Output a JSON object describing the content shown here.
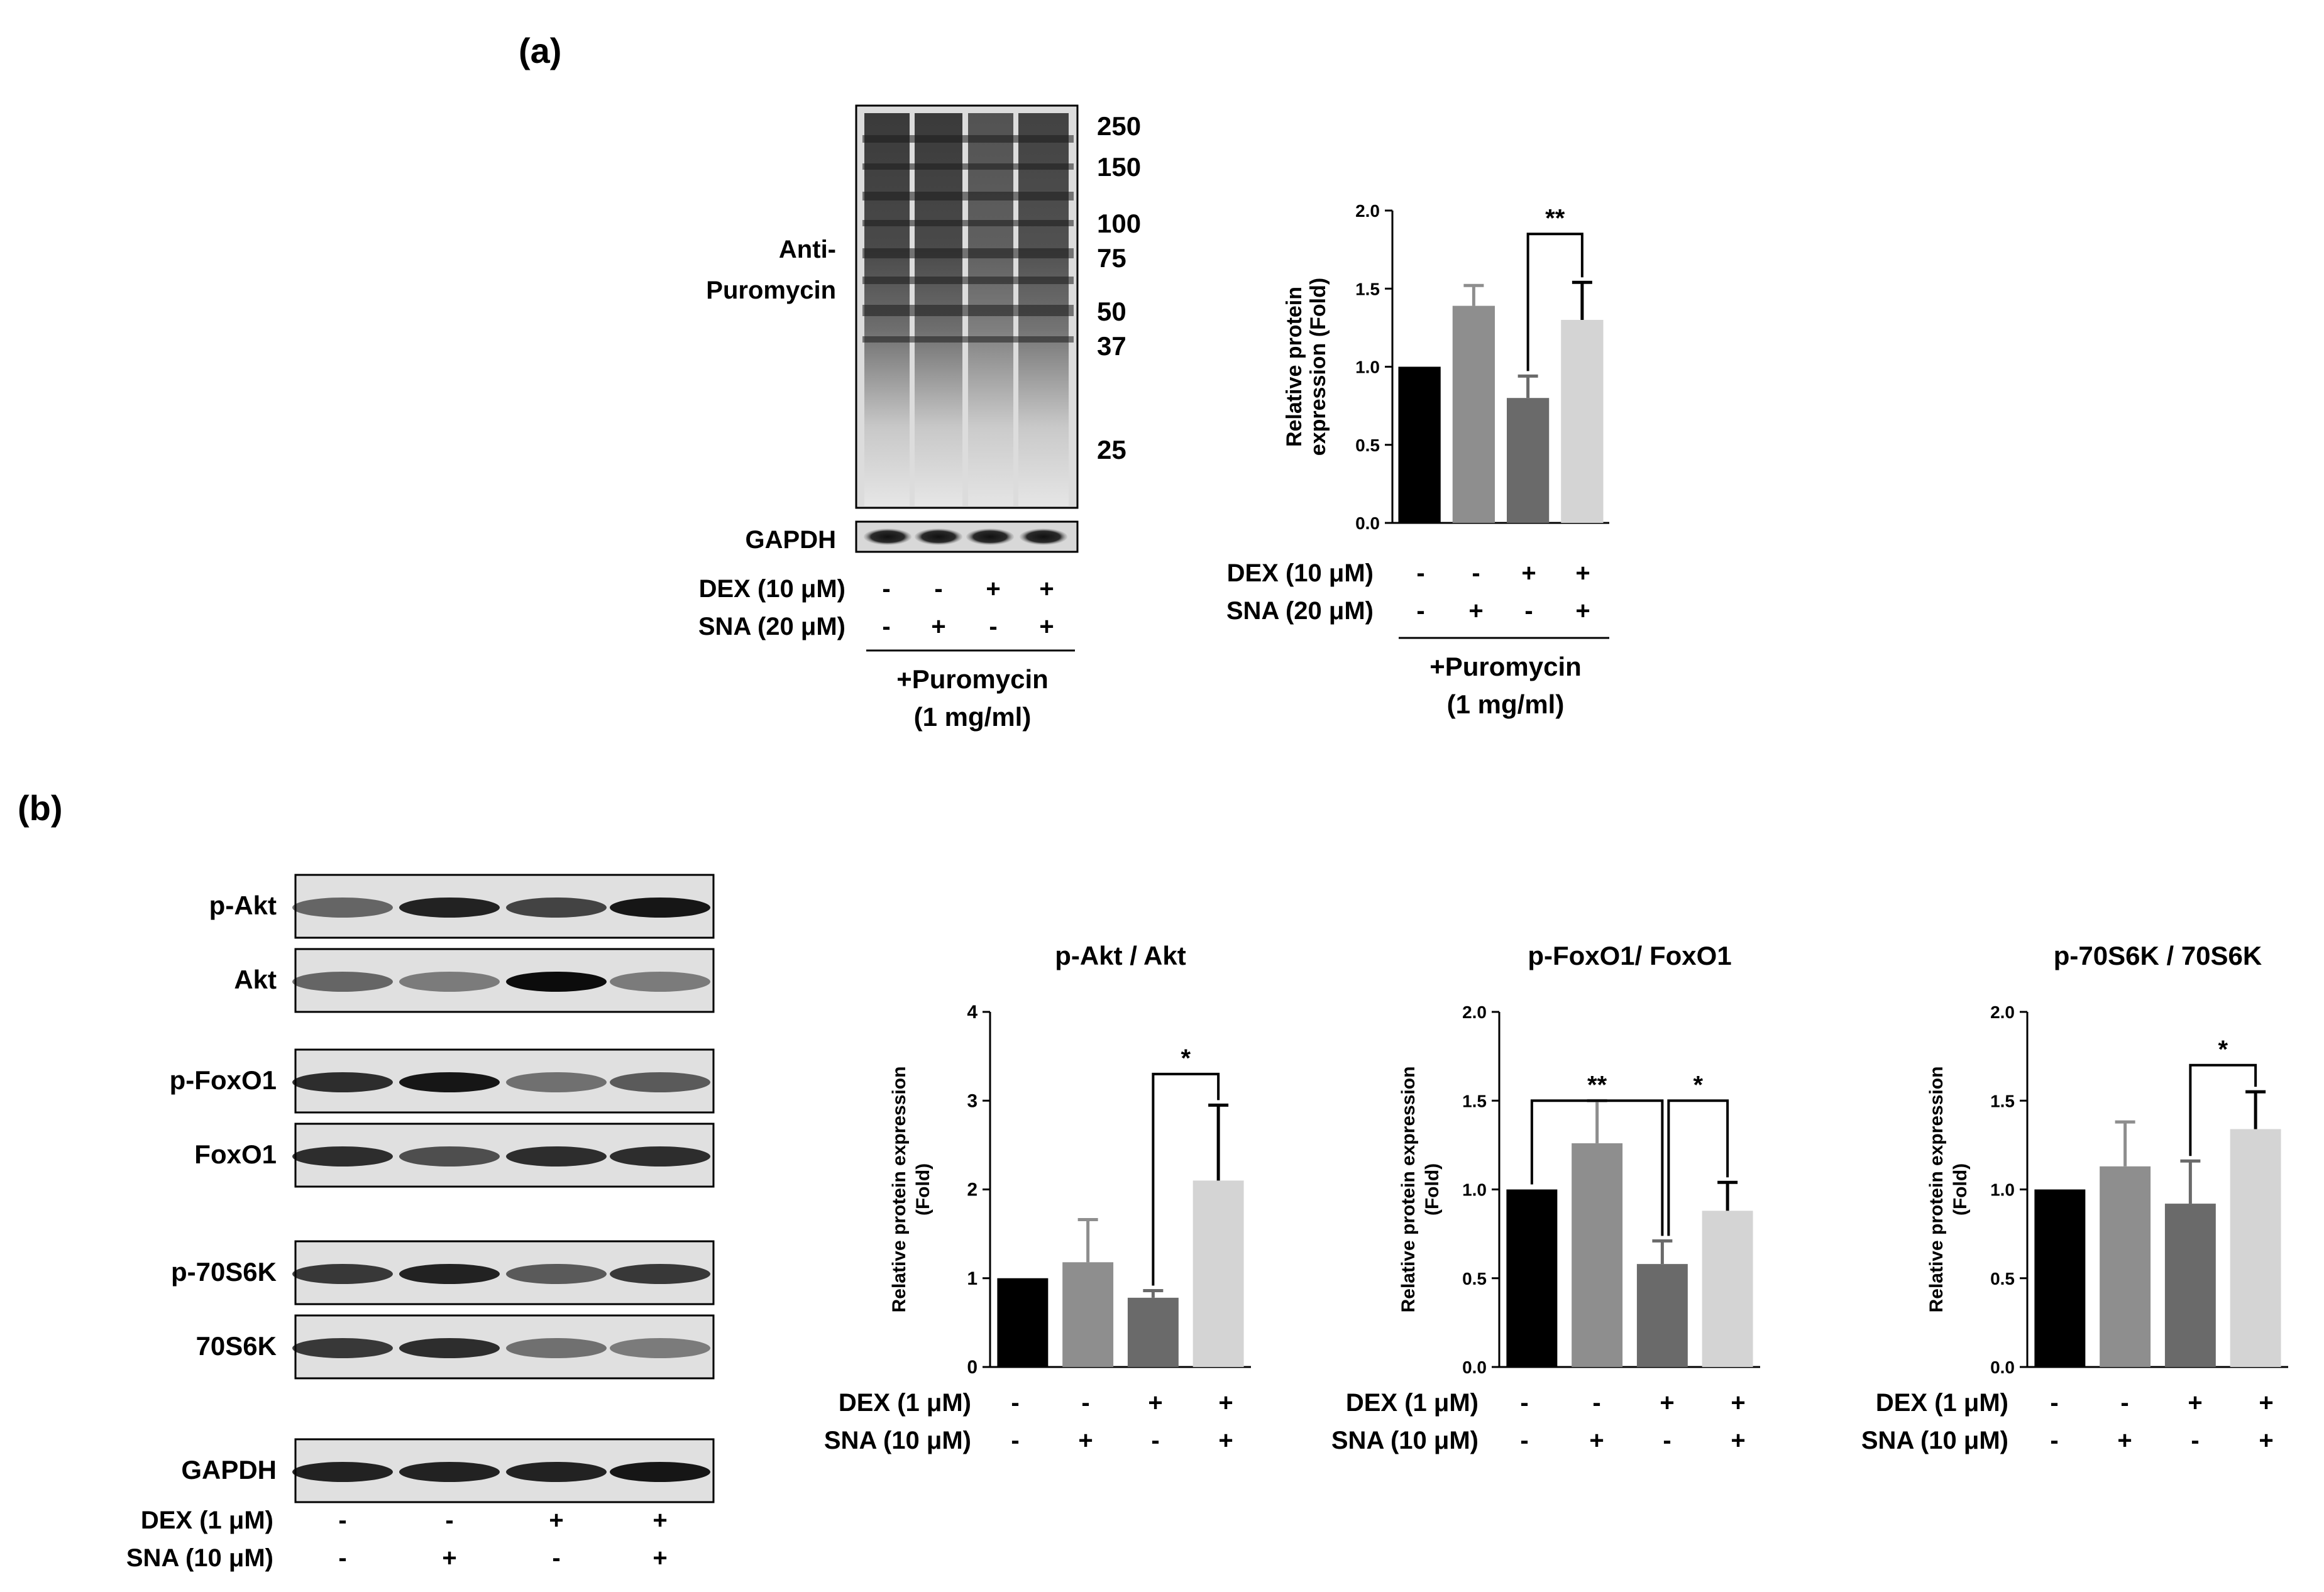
{
  "panel_a": {
    "label": "(a)",
    "blot": {
      "antibody_label": [
        "Anti-",
        "Puromycin"
      ],
      "markers": [
        "250",
        "150",
        "100",
        "75",
        "50",
        "37",
        "25"
      ],
      "loading_label": "GAPDH",
      "conditions": [
        {
          "label": "DEX (10 μM)",
          "signs": [
            "-",
            "-",
            "+",
            "+"
          ]
        },
        {
          "label": "SNA (20 μM)",
          "signs": [
            "-",
            "+",
            "-",
            "+"
          ]
        }
      ],
      "bracket_label": [
        "+Puromycin",
        "(1 mg/ml)"
      ]
    },
    "chart_conditions": [
      {
        "label": "DEX (10 μM)",
        "signs": [
          "-",
          "-",
          "+",
          "+"
        ]
      },
      {
        "label": "SNA (20 μM)",
        "signs": [
          "-",
          "+",
          "-",
          "+"
        ]
      }
    ],
    "chart_bracket_label": [
      "+Puromycin",
      "(1 mg/ml)"
    ]
  },
  "panel_b": {
    "label": "(b)",
    "blot_labels": [
      "p-Akt",
      "Akt",
      "p-FoxO1",
      "FoxO1",
      "p-70S6K",
      "70S6K",
      "GAPDH"
    ],
    "conditions": [
      {
        "label": "DEX (1 μM)",
        "signs": [
          "-",
          "-",
          "+",
          "+"
        ]
      },
      {
        "label": "SNA (10 μM)",
        "signs": [
          "-",
          "+",
          "-",
          "+"
        ]
      }
    ]
  },
  "chart_data": [
    {
      "type": "bar",
      "title": "",
      "ylabel": [
        "Relative protein",
        "expression (Fold)"
      ],
      "ylim": [
        0,
        2.0
      ],
      "yticks": [
        "0.0",
        "0.5",
        "1.0",
        "1.5",
        "2.0"
      ],
      "values": [
        1.0,
        1.39,
        0.8,
        1.3
      ],
      "errors": [
        0,
        0.13,
        0.14,
        0.24
      ],
      "colors": [
        "#000000",
        "#8e8e8e",
        "#6a6a6a",
        "#d4d4d4"
      ],
      "significance": [
        {
          "from": 2,
          "to": 3,
          "label": "**"
        }
      ]
    },
    {
      "type": "bar",
      "title": "p-Akt / Akt",
      "ylabel": [
        "Relative protein expression",
        "(Fold)"
      ],
      "ylim": [
        0,
        4
      ],
      "yticks": [
        "0",
        "1",
        "2",
        "3",
        "4"
      ],
      "values": [
        1.0,
        1.18,
        0.78,
        2.1
      ],
      "errors": [
        0,
        0.48,
        0.08,
        0.85
      ],
      "colors": [
        "#000000",
        "#8e8e8e",
        "#6a6a6a",
        "#d4d4d4"
      ],
      "significance": [
        {
          "from": 2,
          "to": 3,
          "label": "*"
        }
      ]
    },
    {
      "type": "bar",
      "title": "p-FoxO1/ FoxO1",
      "ylabel": [
        "Relative protein expression",
        "(Fold)"
      ],
      "ylim": [
        0,
        2.0
      ],
      "yticks": [
        "0.0",
        "0.5",
        "1.0",
        "1.5",
        "2.0"
      ],
      "values": [
        1.0,
        1.26,
        0.58,
        0.88
      ],
      "errors": [
        0,
        0.24,
        0.13,
        0.16
      ],
      "colors": [
        "#000000",
        "#8e8e8e",
        "#6a6a6a",
        "#d4d4d4"
      ],
      "significance": [
        {
          "from": 0,
          "to": 2,
          "label": "**"
        },
        {
          "from": 2,
          "to": 3,
          "label": "*"
        }
      ]
    },
    {
      "type": "bar",
      "title": "p-70S6K / 70S6K",
      "ylabel": [
        "Relative protein expression",
        "(Fold)"
      ],
      "ylim": [
        0,
        2.0
      ],
      "yticks": [
        "0.0",
        "0.5",
        "1.0",
        "1.5",
        "2.0"
      ],
      "values": [
        1.0,
        1.13,
        0.92,
        1.34
      ],
      "errors": [
        0,
        0.25,
        0.24,
        0.21
      ],
      "colors": [
        "#000000",
        "#8e8e8e",
        "#6a6a6a",
        "#d4d4d4"
      ],
      "significance": [
        {
          "from": 2,
          "to": 3,
          "label": "*"
        }
      ]
    }
  ]
}
